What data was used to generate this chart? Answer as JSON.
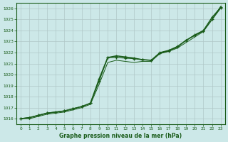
{
  "title": "Graphe pression niveau de la mer (hPa)",
  "x_labels": [
    "0",
    "1",
    "2",
    "3",
    "4",
    "5",
    "6",
    "7",
    "8",
    "9",
    "10",
    "11",
    "12",
    "13",
    "14",
    "15",
    "16",
    "17",
    "18",
    "19",
    "20",
    "21",
    "22",
    "23"
  ],
  "ylim": [
    1015.5,
    1026.5
  ],
  "yticks": [
    1016,
    1017,
    1018,
    1019,
    1020,
    1021,
    1022,
    1023,
    1024,
    1025,
    1026
  ],
  "xlim": [
    -0.5,
    23.5
  ],
  "bg_color": "#cce8e8",
  "line_color": "#1a5c1a",
  "grid_color": "#b0c8c8",
  "series1": [
    1016.0,
    1016.1,
    1016.3,
    1016.5,
    1016.6,
    1016.7,
    1016.9,
    1017.1,
    1017.4,
    1019.4,
    1021.55,
    1021.55,
    1021.5,
    1021.45,
    1021.35,
    1021.3,
    1022.0,
    1022.2,
    1022.55,
    1023.1,
    1023.6,
    1024.0,
    1025.2,
    1026.1
  ],
  "series2": [
    1016.0,
    1016.1,
    1016.3,
    1016.5,
    1016.6,
    1016.7,
    1016.9,
    1017.1,
    1017.4,
    1019.6,
    1021.55,
    1021.7,
    1021.6,
    1021.5,
    1021.35,
    1021.3,
    1021.95,
    1022.15,
    1022.5,
    1023.1,
    1023.55,
    1023.95,
    1025.0,
    1026.05
  ],
  "series3": [
    1016.0,
    1016.0,
    1016.2,
    1016.4,
    1016.5,
    1016.6,
    1016.8,
    1017.0,
    1017.3,
    1019.1,
    1021.1,
    1021.3,
    1021.2,
    1021.1,
    1021.2,
    1021.2,
    1021.9,
    1022.1,
    1022.4,
    1022.9,
    1023.4,
    1023.9,
    1025.0,
    1026.2
  ]
}
